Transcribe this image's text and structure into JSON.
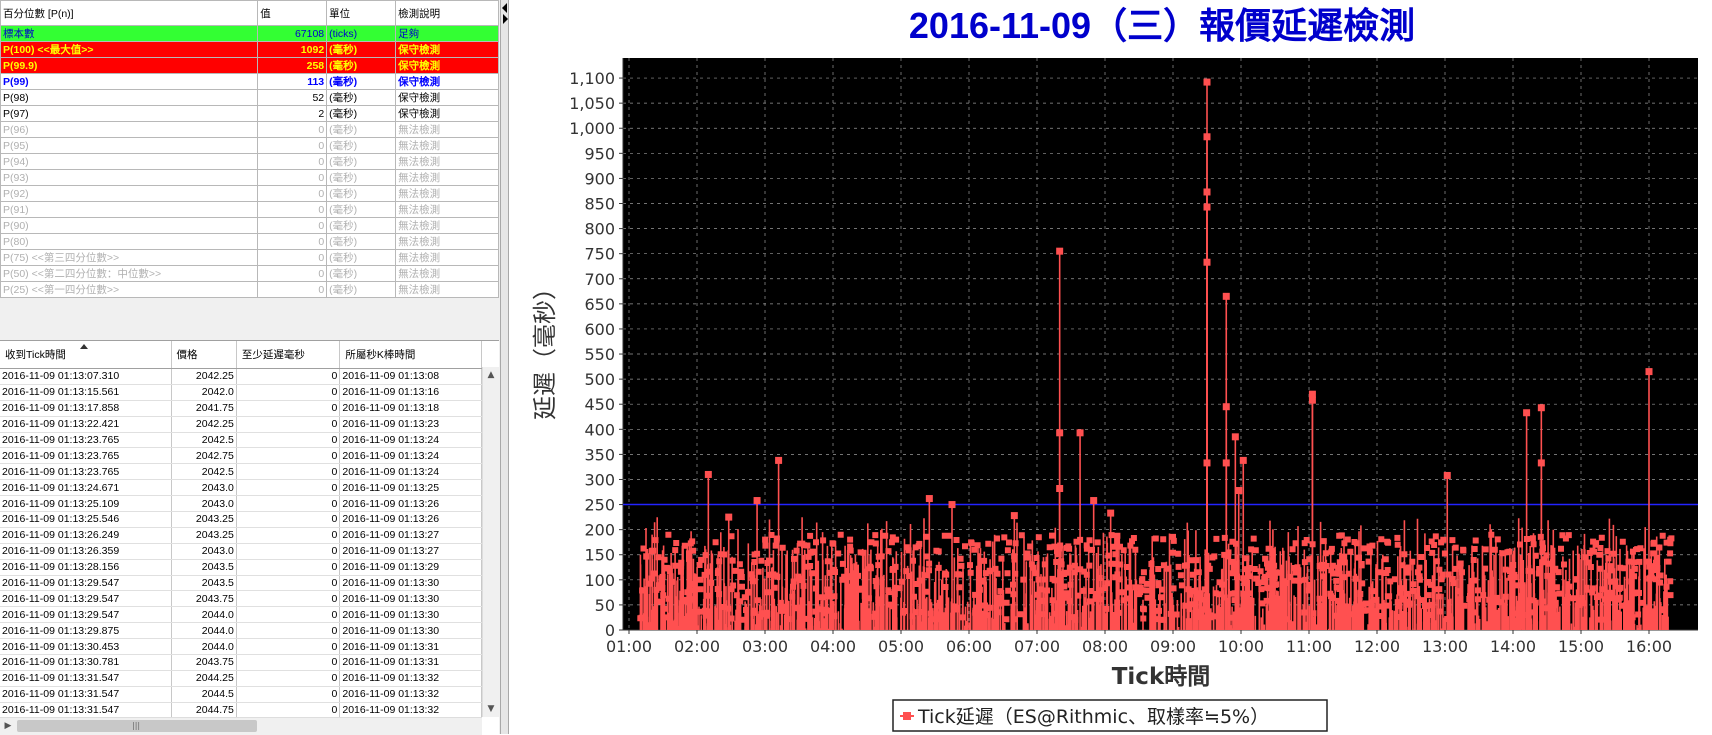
{
  "percentile_table": {
    "headers": [
      "百分位數 [P(n)]",
      "值",
      "單位",
      "檢測說明"
    ],
    "rows": [
      {
        "label": "標本數",
        "value": "67108",
        "unit": "(ticks)",
        "desc": "足夠",
        "style": "green"
      },
      {
        "label": "P(100)  <<最大值>>",
        "value": "1092",
        "unit": "(毫秒)",
        "desc": "保守檢測",
        "style": "red"
      },
      {
        "label": "P(99.9)",
        "value": "258",
        "unit": "(毫秒)",
        "desc": "保守檢測",
        "style": "red"
      },
      {
        "label": "P(99)",
        "value": "113",
        "unit": "(毫秒)",
        "desc": "保守檢測",
        "style": "blue"
      },
      {
        "label": "P(98)",
        "value": "52",
        "unit": "(毫秒)",
        "desc": "保守檢測",
        "style": "black"
      },
      {
        "label": "P(97)",
        "value": "2",
        "unit": "(毫秒)",
        "desc": "保守檢測",
        "style": "black"
      },
      {
        "label": "P(96)",
        "value": "0",
        "unit": "(毫秒)",
        "desc": "無法檢測",
        "style": "gray"
      },
      {
        "label": "P(95)",
        "value": "0",
        "unit": "(毫秒)",
        "desc": "無法檢測",
        "style": "gray"
      },
      {
        "label": "P(94)",
        "value": "0",
        "unit": "(毫秒)",
        "desc": "無法檢測",
        "style": "gray"
      },
      {
        "label": "P(93)",
        "value": "0",
        "unit": "(毫秒)",
        "desc": "無法檢測",
        "style": "gray"
      },
      {
        "label": "P(92)",
        "value": "0",
        "unit": "(毫秒)",
        "desc": "無法檢測",
        "style": "gray"
      },
      {
        "label": "P(91)",
        "value": "0",
        "unit": "(毫秒)",
        "desc": "無法檢測",
        "style": "gray"
      },
      {
        "label": "P(90)",
        "value": "0",
        "unit": "(毫秒)",
        "desc": "無法檢測",
        "style": "gray"
      },
      {
        "label": "P(80)",
        "value": "0",
        "unit": "(毫秒)",
        "desc": "無法檢測",
        "style": "gray"
      },
      {
        "label": "P(75)  <<第三四分位數>>",
        "value": "0",
        "unit": "(毫秒)",
        "desc": "無法檢測",
        "style": "gray"
      },
      {
        "label": "P(50)  <<第二四分位數：中位數>>",
        "value": "0",
        "unit": "(毫秒)",
        "desc": "無法檢測",
        "style": "gray"
      },
      {
        "label": "P(25)  <<第一四分位數>>",
        "value": "0",
        "unit": "(毫秒)",
        "desc": "無法檢測",
        "style": "gray"
      }
    ]
  },
  "tick_table": {
    "headers": [
      "收到Tick時間",
      "價格",
      "至少延遲毫秒",
      "所屬秒K棒時間"
    ],
    "rows": [
      [
        "2016-11-09 01:13:07.310",
        "2042.25",
        "0",
        "2016-11-09 01:13:08"
      ],
      [
        "2016-11-09 01:13:15.561",
        "2042.0",
        "0",
        "2016-11-09 01:13:16"
      ],
      [
        "2016-11-09 01:13:17.858",
        "2041.75",
        "0",
        "2016-11-09 01:13:18"
      ],
      [
        "2016-11-09 01:13:22.421",
        "2042.25",
        "0",
        "2016-11-09 01:13:23"
      ],
      [
        "2016-11-09 01:13:23.765",
        "2042.5",
        "0",
        "2016-11-09 01:13:24"
      ],
      [
        "2016-11-09 01:13:23.765",
        "2042.75",
        "0",
        "2016-11-09 01:13:24"
      ],
      [
        "2016-11-09 01:13:23.765",
        "2042.5",
        "0",
        "2016-11-09 01:13:24"
      ],
      [
        "2016-11-09 01:13:24.671",
        "2043.0",
        "0",
        "2016-11-09 01:13:25"
      ],
      [
        "2016-11-09 01:13:25.109",
        "2043.0",
        "0",
        "2016-11-09 01:13:26"
      ],
      [
        "2016-11-09 01:13:25.546",
        "2043.25",
        "0",
        "2016-11-09 01:13:26"
      ],
      [
        "2016-11-09 01:13:26.249",
        "2043.25",
        "0",
        "2016-11-09 01:13:27"
      ],
      [
        "2016-11-09 01:13:26.359",
        "2043.0",
        "0",
        "2016-11-09 01:13:27"
      ],
      [
        "2016-11-09 01:13:28.156",
        "2043.5",
        "0",
        "2016-11-09 01:13:29"
      ],
      [
        "2016-11-09 01:13:29.547",
        "2043.5",
        "0",
        "2016-11-09 01:13:30"
      ],
      [
        "2016-11-09 01:13:29.547",
        "2043.75",
        "0",
        "2016-11-09 01:13:30"
      ],
      [
        "2016-11-09 01:13:29.547",
        "2044.0",
        "0",
        "2016-11-09 01:13:30"
      ],
      [
        "2016-11-09 01:13:29.875",
        "2044.0",
        "0",
        "2016-11-09 01:13:30"
      ],
      [
        "2016-11-09 01:13:30.453",
        "2044.0",
        "0",
        "2016-11-09 01:13:31"
      ],
      [
        "2016-11-09 01:13:30.781",
        "2043.75",
        "0",
        "2016-11-09 01:13:31"
      ],
      [
        "2016-11-09 01:13:31.547",
        "2044.25",
        "0",
        "2016-11-09 01:13:32"
      ],
      [
        "2016-11-09 01:13:31.547",
        "2044.5",
        "0",
        "2016-11-09 01:13:32"
      ],
      [
        "2016-11-09 01:13:31.547",
        "2044.75",
        "0",
        "2016-11-09 01:13:32"
      ]
    ]
  },
  "colors": {
    "title": "#0000cc",
    "plot_bg": "#000000",
    "series": "#ff5050",
    "threshold_line": "#2323ff",
    "grid": "#9a9a9a"
  },
  "chart_data": {
    "type": "line",
    "title": "2016-11-09（三）報價延遲檢測",
    "xlabel": "Tick時間",
    "ylabel": "延遲（毫秒）",
    "x_ticks": [
      "01:00",
      "02:00",
      "03:00",
      "04:00",
      "05:00",
      "06:00",
      "07:00",
      "08:00",
      "09:00",
      "10:00",
      "11:00",
      "12:00",
      "13:00",
      "14:00",
      "15:00",
      "16:00"
    ],
    "y_ticks": [
      0,
      50,
      100,
      150,
      200,
      250,
      300,
      350,
      400,
      450,
      500,
      550,
      600,
      650,
      700,
      750,
      800,
      850,
      900,
      950,
      1000,
      1050,
      1100
    ],
    "xlim": [
      "01:00",
      "16:30"
    ],
    "ylim": [
      0,
      1140
    ],
    "threshold": 250,
    "grid": true,
    "legend_position": "bottom-center",
    "series": [
      {
        "name": "Tick延遲（ES@Rithmic、取樣率≒5%）",
        "peaks": [
          {
            "x": "02:10",
            "y": 310
          },
          {
            "x": "02:28",
            "y": 225
          },
          {
            "x": "02:53",
            "y": 258
          },
          {
            "x": "03:12",
            "y": 338
          },
          {
            "x": "05:25",
            "y": 262
          },
          {
            "x": "05:45",
            "y": 250
          },
          {
            "x": "06:40",
            "y": 228
          },
          {
            "x": "07:20",
            "y": 755
          },
          {
            "x": "07:20",
            "y": 393
          },
          {
            "x": "07:20",
            "y": 282
          },
          {
            "x": "07:38",
            "y": 393
          },
          {
            "x": "07:50",
            "y": 258
          },
          {
            "x": "08:05",
            "y": 233
          },
          {
            "x": "09:30",
            "y": 1092
          },
          {
            "x": "09:30",
            "y": 983
          },
          {
            "x": "09:30",
            "y": 873
          },
          {
            "x": "09:30",
            "y": 843
          },
          {
            "x": "09:30",
            "y": 733
          },
          {
            "x": "09:30",
            "y": 333
          },
          {
            "x": "09:47",
            "y": 665
          },
          {
            "x": "09:47",
            "y": 445
          },
          {
            "x": "09:47",
            "y": 333
          },
          {
            "x": "09:55",
            "y": 385
          },
          {
            "x": "09:58",
            "y": 278
          },
          {
            "x": "10:02",
            "y": 338
          },
          {
            "x": "11:03",
            "y": 470
          },
          {
            "x": "11:03",
            "y": 458
          },
          {
            "x": "13:02",
            "y": 308
          },
          {
            "x": "14:12",
            "y": 433
          },
          {
            "x": "14:25",
            "y": 443
          },
          {
            "x": "14:25",
            "y": 333
          },
          {
            "x": "16:00",
            "y": 515
          }
        ]
      }
    ]
  }
}
